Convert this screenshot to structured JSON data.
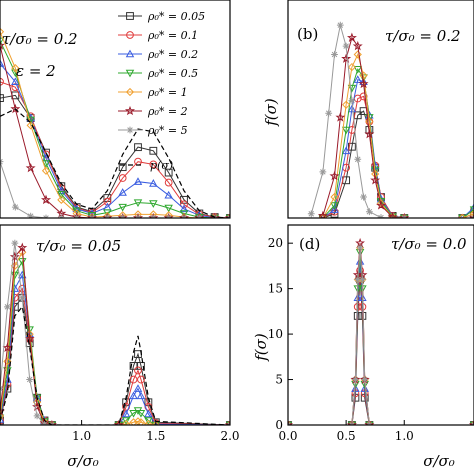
{
  "colors": {
    "rho_0.05": "#333333",
    "rho_0.1": "#e03c3c",
    "rho_0.2": "#3a5de0",
    "rho_0.5": "#2fa82f",
    "rho_1": "#f0a030",
    "rho_2": "#9a1a2a",
    "rho_5": "#999999",
    "p_sigma": "#000000"
  },
  "chart_data": [
    {
      "type": "line",
      "panel": "a",
      "annotations": [
        "τ/σ₀ = 0.2",
        "ε = 2"
      ],
      "xlim": [
        0.5,
        2.0
      ],
      "ylim": [
        0,
        2.4
      ],
      "legend_placement": "top-right",
      "legend": [
        "ρ₀* = 0.05",
        "ρ₀* = 0.1",
        "ρ₀* = 0.2",
        "ρ₀* = 0.5",
        "ρ₀* = 1",
        "ρ₀* = 2",
        "ρ₀* = 5",
        "p(σ)"
      ],
      "series": [
        {
          "name": "ρ₀* = 0.05",
          "x": [
            0.5,
            0.6,
            0.7,
            0.8,
            0.9,
            1.0,
            1.1,
            1.2,
            1.3,
            1.4,
            1.5,
            1.6,
            1.7,
            1.8,
            1.9,
            2.0
          ],
          "y": [
            1.32,
            1.35,
            1.1,
            0.72,
            0.35,
            0.12,
            0.07,
            0.22,
            0.56,
            0.78,
            0.74,
            0.5,
            0.2,
            0.05,
            0.01,
            0.0
          ]
        },
        {
          "name": "ρ₀* = 0.1",
          "x": [
            0.5,
            0.6,
            0.7,
            0.8,
            0.9,
            1.0,
            1.1,
            1.2,
            1.3,
            1.4,
            1.5,
            1.6,
            1.7,
            1.8,
            1.9,
            2.0
          ],
          "y": [
            1.5,
            1.44,
            1.12,
            0.7,
            0.33,
            0.11,
            0.06,
            0.18,
            0.44,
            0.62,
            0.59,
            0.39,
            0.15,
            0.04,
            0.01,
            0.0
          ]
        },
        {
          "name": "ρ₀* = 0.2",
          "x": [
            0.5,
            0.6,
            0.7,
            0.8,
            0.9,
            1.0,
            1.1,
            1.2,
            1.3,
            1.4,
            1.5,
            1.6,
            1.7,
            1.8,
            1.9,
            2.0
          ],
          "y": [
            1.7,
            1.5,
            1.1,
            0.66,
            0.3,
            0.1,
            0.05,
            0.12,
            0.28,
            0.4,
            0.38,
            0.25,
            0.1,
            0.03,
            0.0,
            0.0
          ]
        },
        {
          "name": "ρ₀* = 0.5",
          "x": [
            0.5,
            0.6,
            0.7,
            0.8,
            0.9,
            1.0,
            1.1,
            1.2,
            1.3,
            1.4,
            1.5,
            1.6,
            1.7,
            1.8,
            1.9,
            2.0
          ],
          "y": [
            1.95,
            1.6,
            1.08,
            0.6,
            0.26,
            0.08,
            0.03,
            0.06,
            0.12,
            0.17,
            0.16,
            0.11,
            0.05,
            0.01,
            0.0,
            0.0
          ]
        },
        {
          "name": "ρ₀* = 1",
          "x": [
            0.5,
            0.6,
            0.7,
            0.8,
            0.9,
            1.0,
            1.1,
            1.2,
            1.3,
            1.4,
            1.5,
            1.6,
            1.7,
            1.8,
            1.9,
            2.0
          ],
          "y": [
            2.05,
            1.65,
            1.02,
            0.52,
            0.2,
            0.05,
            0.01,
            0.02,
            0.03,
            0.04,
            0.04,
            0.03,
            0.01,
            0.0,
            0.0,
            0.0
          ]
        },
        {
          "name": "ρ₀* = 2",
          "x": [
            0.5,
            0.6,
            0.7,
            0.8,
            0.9,
            1.0,
            1.1,
            1.2,
            1.3,
            1.4,
            1.5,
            1.6,
            1.7,
            1.8,
            1.9,
            2.0
          ],
          "y": [
            1.9,
            1.2,
            0.55,
            0.2,
            0.05,
            0.01,
            0.0,
            0.0,
            0.0,
            0.0,
            0.0,
            0.0,
            0.0,
            0.0,
            0.0,
            0.0
          ]
        },
        {
          "name": "ρ₀* = 5",
          "x": [
            0.5,
            0.6,
            0.7,
            0.8,
            0.9,
            1.0,
            1.1,
            1.2,
            1.3,
            1.4,
            1.5,
            1.6,
            1.7,
            1.8,
            1.9,
            2.0
          ],
          "y": [
            0.62,
            0.12,
            0.02,
            0.0,
            0.0,
            0.0,
            0.0,
            0.0,
            0.0,
            0.0,
            0.0,
            0.0,
            0.0,
            0.0,
            0.0,
            0.0
          ]
        },
        {
          "name": "p(σ)",
          "x": [
            0.5,
            0.6,
            0.7,
            0.8,
            0.9,
            1.0,
            1.1,
            1.2,
            1.3,
            1.4,
            1.5,
            1.6,
            1.7,
            1.8,
            1.9,
            2.0
          ],
          "y": [
            1.12,
            1.2,
            1.05,
            0.72,
            0.38,
            0.15,
            0.1,
            0.3,
            0.7,
            0.98,
            0.95,
            0.66,
            0.3,
            0.08,
            0.01,
            0.0
          ]
        }
      ]
    },
    {
      "type": "line",
      "panel": "b",
      "label": "(b)",
      "annotations": [
        "τ/σ₀ = 0.2"
      ],
      "ylabel": "f(σ)",
      "xlim": [
        0.0,
        1.6
      ],
      "ylim": [
        0,
        5.2
      ],
      "series": [
        {
          "name": "ρ₀* = 0.05",
          "x": [
            0.3,
            0.4,
            0.5,
            0.55,
            0.6,
            0.65,
            0.7,
            0.75,
            0.8,
            0.9,
            1.0,
            1.5,
            1.6
          ],
          "y": [
            0,
            0.1,
            0.9,
            1.7,
            2.45,
            2.55,
            2.1,
            1.2,
            0.5,
            0.05,
            0,
            0,
            0.1
          ]
        },
        {
          "name": "ρ₀* = 0.1",
          "x": [
            0.3,
            0.4,
            0.5,
            0.55,
            0.6,
            0.65,
            0.7,
            0.75,
            0.8,
            0.9,
            1.0,
            1.5,
            1.6
          ],
          "y": [
            0,
            0.15,
            1.2,
            2.1,
            2.85,
            2.9,
            2.3,
            1.25,
            0.5,
            0.05,
            0,
            0,
            0.2
          ]
        },
        {
          "name": "ρ₀* = 0.2",
          "x": [
            0.3,
            0.4,
            0.5,
            0.55,
            0.6,
            0.65,
            0.7,
            0.75,
            0.8,
            0.9,
            1.0,
            1.5,
            1.6
          ],
          "y": [
            0,
            0.2,
            1.6,
            2.6,
            3.3,
            3.25,
            2.45,
            1.25,
            0.45,
            0.04,
            0,
            0,
            0.25
          ]
        },
        {
          "name": "ρ₀* = 0.5",
          "x": [
            0.3,
            0.4,
            0.5,
            0.55,
            0.6,
            0.65,
            0.7,
            0.75,
            0.8,
            0.9,
            1.0,
            1.5,
            1.6
          ],
          "y": [
            0,
            0.3,
            2.1,
            3.1,
            3.55,
            3.35,
            2.4,
            1.15,
            0.4,
            0.03,
            0,
            0,
            0.2
          ]
        },
        {
          "name": "ρ₀* = 1",
          "x": [
            0.3,
            0.4,
            0.5,
            0.55,
            0.6,
            0.65,
            0.7,
            0.75,
            0.8,
            0.9,
            1.0,
            1.5,
            1.6
          ],
          "y": [
            0,
            0.5,
            2.7,
            3.6,
            3.9,
            3.4,
            2.3,
            1.05,
            0.35,
            0.02,
            0,
            0,
            0.1
          ]
        },
        {
          "name": "ρ₀* = 2",
          "x": [
            0.3,
            0.4,
            0.45,
            0.5,
            0.55,
            0.6,
            0.65,
            0.7,
            0.75,
            0.8,
            0.9,
            1.0,
            1.6
          ],
          "y": [
            0.05,
            1.0,
            2.4,
            3.8,
            4.3,
            4.1,
            3.2,
            2.0,
            0.9,
            0.3,
            0.02,
            0,
            0
          ]
        },
        {
          "name": "ρ₀* = 5",
          "x": [
            0.2,
            0.3,
            0.35,
            0.4,
            0.45,
            0.5,
            0.55,
            0.6,
            0.65,
            0.7,
            0.8,
            1.0,
            1.6
          ],
          "y": [
            0.1,
            1.1,
            2.5,
            3.9,
            4.6,
            4.1,
            2.8,
            1.4,
            0.5,
            0.15,
            0.01,
            0,
            0
          ]
        }
      ]
    },
    {
      "type": "line",
      "panel": "c",
      "annotations": [
        "τ/σ₀ = 0.05"
      ],
      "xlabel": "σ/σ₀",
      "xticks": [
        "1.0",
        "1.5",
        "2.0"
      ],
      "xlim": [
        0.45,
        2.0
      ],
      "ylim": [
        0,
        22
      ],
      "series": [
        {
          "name": "ρ₀* = 0.05",
          "x": [
            0.45,
            0.5,
            0.55,
            0.6,
            0.65,
            0.7,
            0.75,
            0.8,
            1.25,
            1.3,
            1.35,
            1.38,
            1.4,
            1.45,
            1.5,
            2.0
          ],
          "y": [
            0.5,
            4,
            13,
            14,
            9,
            3,
            0.5,
            0,
            0,
            2.5,
            6.5,
            7.8,
            6.5,
            2.5,
            0.3,
            0
          ]
        },
        {
          "name": "ρ₀* = 0.1",
          "x": [
            0.45,
            0.5,
            0.55,
            0.6,
            0.65,
            0.7,
            0.75,
            0.8,
            1.25,
            1.3,
            1.35,
            1.38,
            1.4,
            1.45,
            1.5,
            2.0
          ],
          "y": [
            0.5,
            4.5,
            14,
            15,
            9.5,
            3,
            0.5,
            0,
            0,
            2,
            5,
            6,
            5,
            2,
            0.2,
            0
          ]
        },
        {
          "name": "ρ₀* = 0.2",
          "x": [
            0.45,
            0.5,
            0.55,
            0.6,
            0.65,
            0.7,
            0.75,
            0.8,
            1.25,
            1.3,
            1.35,
            1.38,
            1.4,
            1.45,
            1.5,
            2.0
          ],
          "y": [
            0.6,
            5,
            15,
            16.5,
            10,
            3,
            0.5,
            0,
            0,
            1.2,
            3.2,
            4,
            3.2,
            1.2,
            0.1,
            0
          ]
        },
        {
          "name": "ρ₀* = 0.5",
          "x": [
            0.45,
            0.5,
            0.55,
            0.6,
            0.65,
            0.7,
            0.75,
            0.8,
            1.25,
            1.3,
            1.35,
            1.38,
            1.4,
            1.45,
            1.5,
            2.0
          ],
          "y": [
            0.8,
            6,
            16.5,
            18,
            10.5,
            3,
            0.4,
            0,
            0,
            0.5,
            1.3,
            1.6,
            1.3,
            0.5,
            0,
            0
          ]
        },
        {
          "name": "ρ₀* = 1",
          "x": [
            0.45,
            0.5,
            0.55,
            0.6,
            0.65,
            0.7,
            0.75,
            0.8,
            1.25,
            1.3,
            1.35,
            1.38,
            1.4,
            1.45,
            1.5,
            2.0
          ],
          "y": [
            1,
            7,
            17.5,
            19,
            10,
            2.5,
            0.3,
            0,
            0,
            0.1,
            0.3,
            0.4,
            0.3,
            0.1,
            0,
            0
          ]
        },
        {
          "name": "ρ₀* = 2",
          "x": [
            0.45,
            0.5,
            0.55,
            0.6,
            0.65,
            0.7,
            0.75,
            0.8,
            1.25,
            2.0
          ],
          "y": [
            1.5,
            8.5,
            18.5,
            19.5,
            9.5,
            2,
            0.2,
            0,
            0,
            0
          ]
        },
        {
          "name": "ρ₀* = 5",
          "x": [
            0.45,
            0.5,
            0.55,
            0.6,
            0.65,
            0.7,
            0.75,
            0.8,
            2.0
          ],
          "y": [
            4,
            13,
            20,
            14,
            5,
            1,
            0.1,
            0,
            0
          ]
        },
        {
          "name": "p(σ)",
          "x": [
            0.45,
            0.5,
            0.55,
            0.6,
            0.65,
            0.7,
            0.75,
            0.8,
            1.25,
            1.3,
            1.35,
            1.38,
            1.4,
            1.45,
            1.5,
            2.0
          ],
          "y": [
            0.4,
            3.5,
            12,
            13,
            8.5,
            3,
            0.5,
            0,
            0,
            3,
            8,
            9.8,
            8,
            3,
            0.4,
            0
          ]
        }
      ]
    },
    {
      "type": "line",
      "panel": "d",
      "label": "(d)",
      "annotations": [
        "τ/σ₀ = 0.0"
      ],
      "xlabel": "σ/σ₀",
      "ylabel": "f(σ)",
      "xticks": [
        "0.0",
        "0.5",
        "1.0"
      ],
      "yticks": [
        "0",
        "5",
        "10",
        "15",
        "20"
      ],
      "xlim": [
        0.0,
        1.6
      ],
      "ylim": [
        0,
        22
      ],
      "series": [
        {
          "name": "ρ₀* = 0.05",
          "x": [
            0.0,
            0.55,
            0.58,
            0.6,
            0.62,
            0.64,
            0.66,
            0.7,
            1.6
          ],
          "y": [
            0,
            0,
            3,
            12,
            16,
            12,
            3,
            0,
            0
          ]
        },
        {
          "name": "ρ₀* = 0.1",
          "x": [
            0.0,
            0.55,
            0.58,
            0.6,
            0.62,
            0.64,
            0.66,
            0.7,
            1.6
          ],
          "y": [
            0,
            0,
            3.5,
            13,
            17,
            13,
            3.5,
            0,
            0
          ]
        },
        {
          "name": "ρ₀* = 0.2",
          "x": [
            0.0,
            0.55,
            0.58,
            0.6,
            0.62,
            0.64,
            0.66,
            0.7,
            1.6
          ],
          "y": [
            0,
            0,
            4,
            14,
            18,
            14,
            4,
            0,
            0
          ]
        },
        {
          "name": "ρ₀* = 0.5",
          "x": [
            0.0,
            0.55,
            0.58,
            0.6,
            0.62,
            0.64,
            0.66,
            0.7,
            1.6
          ],
          "y": [
            0,
            0,
            4.5,
            15,
            19,
            15,
            4.5,
            0,
            0
          ]
        },
        {
          "name": "ρ₀* = 1",
          "x": [
            0.0,
            0.55,
            0.58,
            0.6,
            0.62,
            0.64,
            0.66,
            0.7,
            1.6
          ],
          "y": [
            0,
            0,
            5,
            16,
            19.5,
            16,
            5,
            0,
            0
          ]
        },
        {
          "name": "ρ₀* = 2",
          "x": [
            0.0,
            0.55,
            0.58,
            0.6,
            0.62,
            0.64,
            0.66,
            0.7,
            1.6
          ],
          "y": [
            0,
            0,
            5,
            16.5,
            20,
            16.5,
            5,
            0,
            0
          ]
        },
        {
          "name": "ρ₀* = 5",
          "x": [
            0.0,
            0.55,
            0.58,
            0.6,
            0.62,
            0.64,
            0.66,
            0.7,
            1.6
          ],
          "y": [
            0,
            0,
            5,
            16,
            19.5,
            16,
            5,
            0,
            0
          ]
        }
      ]
    }
  ]
}
